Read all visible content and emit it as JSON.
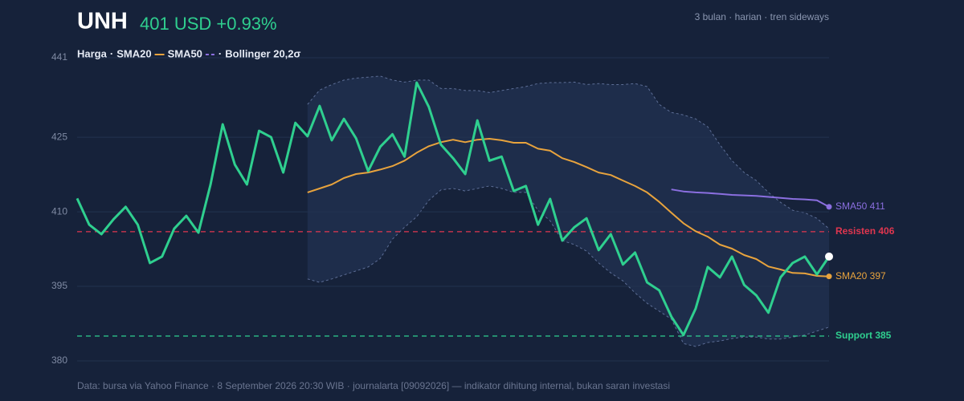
{
  "chart_data": {
    "type": "line",
    "title": "UNH",
    "subtitle": "401 USD +0.93%",
    "note": "3 bulan · harian · tren sideways",
    "legend_separator": "·",
    "footer": "Data: bursa via Yahoo Finance · 8 September 2026 20:30 WIB · journalarta [09092026] — indikator dihitung internal, bukan saran investasi",
    "ylim": [
      380,
      441
    ],
    "yticks": [
      380,
      395,
      410,
      425,
      441
    ],
    "grid": true,
    "series": [
      {
        "name": "Harga",
        "color": "#2fcf8f",
        "values": [
          412.7,
          407.4,
          405.5,
          408.5,
          411,
          407.4,
          399.7,
          401,
          406.6,
          409.2,
          405.8,
          415.5,
          427.6,
          419.5,
          415.5,
          426.3,
          425,
          417.9,
          427.9,
          425.2,
          431.3,
          424.4,
          428.7,
          424.8,
          418.2,
          423.1,
          425.6,
          421.1,
          436,
          431.1,
          423.5,
          420.8,
          417.6,
          428.4,
          420.3,
          421.1,
          414.2,
          415.2,
          407.4,
          412.6,
          404.2,
          406.9,
          408.7,
          402.3,
          405.5,
          399.4,
          401.8,
          395.8,
          394.2,
          388.9,
          385.2,
          390.5,
          398.9,
          396.8,
          401,
          395.3,
          393.2,
          389.7,
          396.8,
          399.7,
          401,
          397.4,
          401
        ]
      },
      {
        "name": "SMA20",
        "color": "#e8a33d",
        "end_label": "SMA20 397",
        "values": [
          null,
          null,
          null,
          null,
          null,
          null,
          null,
          null,
          null,
          null,
          null,
          null,
          null,
          null,
          null,
          null,
          null,
          null,
          null,
          413.9,
          414.7,
          415.5,
          416.8,
          417.6,
          417.9,
          418.5,
          419.2,
          420.3,
          421.9,
          423.2,
          424,
          424.5,
          424,
          424.5,
          424.7,
          424.4,
          423.9,
          423.9,
          422.7,
          422.3,
          420.8,
          420,
          419,
          417.9,
          417.4,
          416.3,
          415.2,
          413.9,
          412,
          409.8,
          407.7,
          406.1,
          405,
          403.4,
          402.6,
          401.3,
          400.5,
          399,
          398.4,
          397.7,
          397.6,
          397.1,
          397
        ]
      },
      {
        "name": "SMA50",
        "color": "#8b6fe0",
        "end_label": "SMA50 411",
        "values": [
          null,
          null,
          null,
          null,
          null,
          null,
          null,
          null,
          null,
          null,
          null,
          null,
          null,
          null,
          null,
          null,
          null,
          null,
          null,
          null,
          null,
          null,
          null,
          null,
          null,
          null,
          null,
          null,
          null,
          null,
          null,
          null,
          null,
          null,
          null,
          null,
          null,
          null,
          null,
          null,
          null,
          null,
          null,
          null,
          null,
          null,
          null,
          null,
          null,
          414.5,
          414.1,
          413.9,
          413.8,
          413.6,
          413.4,
          413.3,
          413.2,
          413,
          412.8,
          412.6,
          412.5,
          412.3,
          411
        ]
      },
      {
        "name": "Bollinger 20,2σ",
        "color": "#5d6e96",
        "values": [
          null,
          null,
          null,
          null,
          null,
          null,
          null,
          null,
          null,
          null,
          null,
          null,
          null,
          null,
          null,
          null,
          null,
          null,
          null,
          431.6,
          434.5,
          435.6,
          436.5,
          436.9,
          437.1,
          437.3,
          436.5,
          436.1,
          436.5,
          436.5,
          434.8,
          434.8,
          434.4,
          434.4,
          434,
          434.4,
          434.8,
          435.2,
          435.8,
          436,
          436,
          436.1,
          435.6,
          435.8,
          435.6,
          435.6,
          435.8,
          435.2,
          431.6,
          430,
          429.5,
          428.7,
          427.1,
          423.5,
          420.3,
          417.9,
          416.3,
          413.9,
          411.9,
          410.3,
          409.8,
          408.7,
          406.6
        ],
        "lower": [
          null,
          null,
          null,
          null,
          null,
          null,
          null,
          null,
          null,
          null,
          null,
          null,
          null,
          null,
          null,
          null,
          null,
          null,
          null,
          396.5,
          395.8,
          396.5,
          397.3,
          398.1,
          398.9,
          400.6,
          404.5,
          406.9,
          409,
          412.3,
          414.4,
          414.7,
          414.2,
          414.7,
          415.2,
          414.7,
          413.9,
          413.9,
          410.3,
          408.2,
          404.2,
          403.4,
          402.1,
          399.7,
          397.7,
          396.1,
          393.7,
          391.6,
          390,
          388.4,
          383.5,
          382.9,
          383.7,
          384,
          384.5,
          384.8,
          384.8,
          384.4,
          384.4,
          384.8,
          385.2,
          386,
          386.8
        ]
      }
    ],
    "hlines": [
      {
        "value": 406,
        "label": "Resisten 406",
        "color": "#e0364f"
      },
      {
        "value": 385,
        "label": "Support 385",
        "color": "#2fcf8f"
      }
    ]
  }
}
